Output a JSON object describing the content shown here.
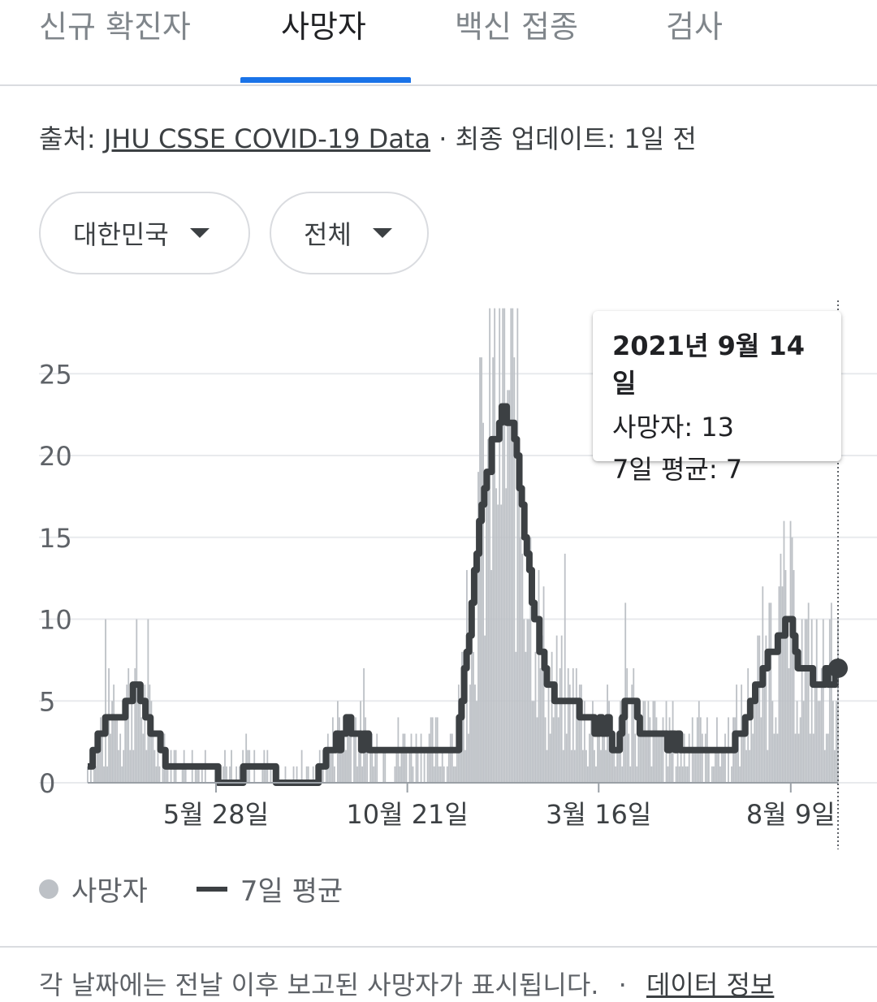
{
  "tabs": [
    {
      "label": "신규 확진자",
      "active": false
    },
    {
      "label": "사망자",
      "active": true
    },
    {
      "label": "백신 접종",
      "active": false
    },
    {
      "label": "검사",
      "active": false
    }
  ],
  "source": {
    "prefix": "출처: ",
    "link_text": "JHU CSSE COVID-19 Data",
    "suffix": " · 최종 업데이트: 1일 전"
  },
  "filters": {
    "region": "대한민국",
    "scope": "전체"
  },
  "tooltip": {
    "date": "2021년 9월 14일",
    "deaths_label": "사망자: 13",
    "avg_label": "7일 평균: 7"
  },
  "legend": {
    "bars_label": "사망자",
    "line_label": "7일 평균"
  },
  "footer": {
    "text": "각 날짜에는 전날 이후 보고된 사망자가 표시됩니다.",
    "separator": "·",
    "link_text": "데이터 정보"
  },
  "colors": {
    "accent": "#1a73e8",
    "bars": "#bdc1c6",
    "line": "#3c4043",
    "grid": "#e8eaed"
  },
  "chart_data": {
    "type": "bar",
    "title": "",
    "xlabel": "",
    "ylabel": "",
    "ylim": [
      0,
      27
    ],
    "y_ticks": [
      0,
      5,
      10,
      15,
      20,
      25
    ],
    "x_tick_labels": [
      "5월 28일",
      "10월 21일",
      "3월 16일",
      "8월 9일"
    ],
    "x_tick_fractions": [
      0.171,
      0.426,
      0.681,
      0.937
    ],
    "series": [
      {
        "name": "사망자",
        "kind": "daily-bars",
        "note": "noisy daily values approximately around the 7-day average",
        "values_from": "7일 평균"
      },
      {
        "name": "7일 평균",
        "kind": "line",
        "points": [
          [
            0.0,
            1
          ],
          [
            0.008,
            2
          ],
          [
            0.02,
            3
          ],
          [
            0.03,
            4
          ],
          [
            0.045,
            4
          ],
          [
            0.055,
            5
          ],
          [
            0.062,
            6
          ],
          [
            0.07,
            5
          ],
          [
            0.078,
            4
          ],
          [
            0.09,
            3
          ],
          [
            0.098,
            2
          ],
          [
            0.105,
            1
          ],
          [
            0.15,
            1
          ],
          [
            0.17,
            1
          ],
          [
            0.18,
            0
          ],
          [
            0.2,
            0
          ],
          [
            0.21,
            1
          ],
          [
            0.24,
            1
          ],
          [
            0.25,
            0
          ],
          [
            0.3,
            0
          ],
          [
            0.32,
            2
          ],
          [
            0.34,
            3
          ],
          [
            0.35,
            3.5
          ],
          [
            0.365,
            2.5
          ],
          [
            0.38,
            2
          ],
          [
            0.4,
            2
          ],
          [
            0.42,
            2
          ],
          [
            0.45,
            2
          ],
          [
            0.49,
            2
          ],
          [
            0.495,
            4
          ],
          [
            0.51,
            10
          ],
          [
            0.525,
            17
          ],
          [
            0.54,
            21
          ],
          [
            0.555,
            23
          ],
          [
            0.57,
            21
          ],
          [
            0.585,
            14
          ],
          [
            0.6,
            9
          ],
          [
            0.615,
            6
          ],
          [
            0.63,
            5
          ],
          [
            0.65,
            5
          ],
          [
            0.665,
            3.5
          ],
          [
            0.69,
            3.5
          ],
          [
            0.705,
            2
          ],
          [
            0.72,
            6
          ],
          [
            0.735,
            3
          ],
          [
            0.76,
            3
          ],
          [
            0.8,
            2
          ],
          [
            0.85,
            2
          ],
          [
            0.88,
            4
          ],
          [
            0.9,
            7
          ],
          [
            0.92,
            9
          ],
          [
            0.935,
            10
          ],
          [
            0.95,
            7
          ],
          [
            0.965,
            7
          ],
          [
            0.975,
            6
          ],
          [
            1.0,
            7
          ]
        ]
      }
    ],
    "highlight": {
      "date": "2021년 9월 14일",
      "deaths": 13,
      "avg": 7
    },
    "grid": true,
    "legend_position": "bottom-left"
  }
}
